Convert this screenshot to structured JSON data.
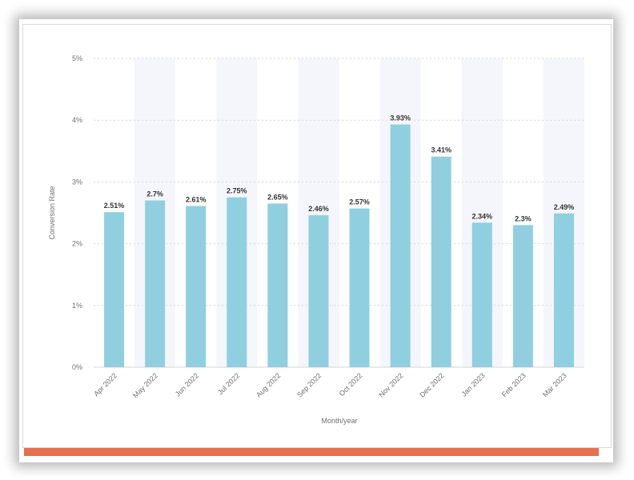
{
  "colors": {
    "bar": "#8fcfe0",
    "band": "#f4f6fb",
    "grid": "#d6d6d6",
    "frame": "#e86f4f"
  },
  "chart_data": {
    "type": "bar",
    "categories": [
      "Apr 2022",
      "May 2022",
      "Jun 2022",
      "Jul 2022",
      "Aug 2022",
      "Sep 2022",
      "Oct 2022",
      "Nov 2022",
      "Dec 2022",
      "Jan 2023",
      "Feb 2023",
      "Mar 2023"
    ],
    "values": [
      2.51,
      2.7,
      2.61,
      2.75,
      2.65,
      2.46,
      2.57,
      3.93,
      3.41,
      2.34,
      2.3,
      2.49
    ],
    "data_labels": [
      "2.51%",
      "2.7%",
      "2.61%",
      "2.75%",
      "2.65%",
      "2.46%",
      "2.57%",
      "3.93%",
      "3.41%",
      "2.34%",
      "2.3%",
      "2.49%"
    ],
    "xlabel": "Month/year",
    "ylabel": "Conversion Rate",
    "ylim": [
      0,
      5
    ],
    "yticks": [
      "0%",
      "1%",
      "2%",
      "3%",
      "4%",
      "5%"
    ],
    "grid": true,
    "alternating_bands": true
  }
}
